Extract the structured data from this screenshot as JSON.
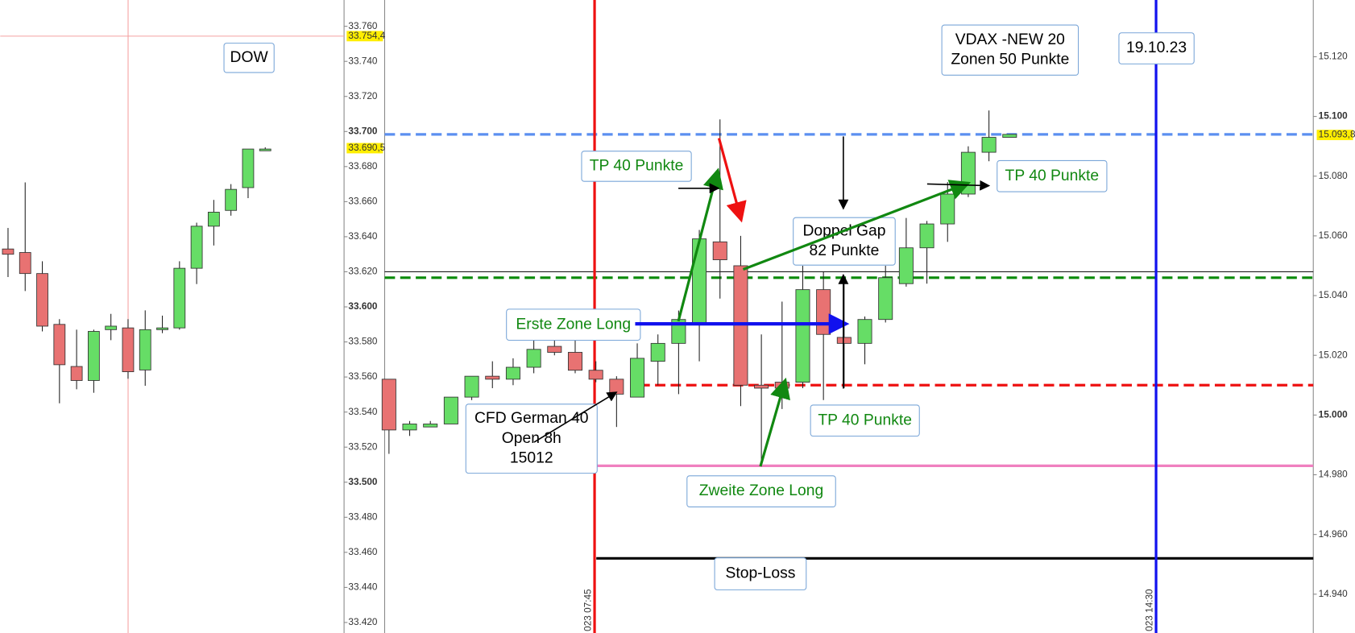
{
  "chart_data": [
    {
      "type": "candlestick",
      "title": "DOW",
      "open": [
        33633,
        33631,
        33619,
        33590,
        33566,
        33558,
        33587,
        33588,
        33564,
        33587,
        33588,
        33622,
        33646,
        33655,
        33668,
        33689
      ],
      "high": [
        33645,
        33671,
        33626,
        33593,
        33587,
        33587,
        33596,
        33593,
        33598,
        33595,
        33626,
        33648,
        33661,
        33670,
        33690,
        33691
      ],
      "low": [
        33617,
        33609,
        33586,
        33545,
        33553,
        33551,
        33581,
        33559,
        33555,
        33585,
        33587,
        33613,
        33635,
        33652,
        33662,
        33689
      ],
      "close": [
        33630,
        33619,
        33589,
        33567,
        33558,
        33586,
        33589,
        33563,
        33587,
        33588,
        33622,
        33646,
        33654,
        33667,
        33690,
        33690
      ],
      "up_color": "#66dd66",
      "down_color": "#e87272",
      "ylim": [
        33414,
        33775
      ],
      "yticks": [
        {
          "value": 33420,
          "label": "33.420"
        },
        {
          "value": 33440,
          "label": "33.440"
        },
        {
          "value": 33460,
          "label": "33.460"
        },
        {
          "value": 33480,
          "label": "33.480"
        },
        {
          "value": 33500,
          "label": "33.500"
        },
        {
          "value": 33520,
          "label": "33.520"
        },
        {
          "value": 33540,
          "label": "33.540"
        },
        {
          "value": 33560,
          "label": "33.560"
        },
        {
          "value": 33580,
          "label": "33.580"
        },
        {
          "value": 33600,
          "label": "33.600"
        },
        {
          "value": 33620,
          "label": "33.620"
        },
        {
          "value": 33640,
          "label": "33.640"
        },
        {
          "value": 33660,
          "label": "33.660"
        },
        {
          "value": 33680,
          "label": "33.680"
        },
        {
          "value": 33700,
          "label": "33.700"
        },
        {
          "value": 33720,
          "label": "33.720"
        },
        {
          "value": 33740,
          "label": "33.740"
        },
        {
          "value": 33760,
          "label": "33.760"
        }
      ],
      "price_tags": [
        {
          "value": 33754.4,
          "label": "33.754,4"
        },
        {
          "value": 33690.5,
          "label": "33.690,5"
        }
      ]
    },
    {
      "type": "candlestick",
      "open": [
        15012,
        14995,
        14996,
        14997,
        15006,
        15013,
        15012,
        15016,
        15023,
        15021,
        15015,
        15012,
        15006,
        15018,
        15024,
        15031,
        15058,
        15050,
        15010,
        15011,
        15011,
        15042,
        15026,
        15024,
        15032,
        15044,
        15056,
        15064,
        15074,
        15088,
        15093
      ],
      "high": [
        15012,
        14998,
        14998,
        15006,
        15013,
        15018,
        15019,
        15025,
        15026,
        15025,
        15018,
        15013,
        15024,
        15027,
        15035,
        15062,
        15099,
        15060,
        15027,
        15038,
        15050,
        15048,
        15044,
        15033,
        15050,
        15066,
        15065,
        15078,
        15090,
        15102,
        15094
      ],
      "low": [
        14987,
        14993,
        14996,
        14997,
        15005,
        15009,
        15010,
        15014,
        15020,
        15014,
        15011,
        14996,
        15006,
        15010,
        15007,
        15018,
        15039,
        15003,
        14983,
        15002,
        15009,
        15005,
        15009,
        15017,
        15031,
        15043,
        15044,
        15058,
        15073,
        15085,
        15093
      ],
      "close": [
        14995,
        14997,
        14997,
        15006,
        15013,
        15012,
        15016,
        15022,
        15021,
        15015,
        15012,
        15007,
        15019,
        15024,
        15032,
        15059,
        15052,
        15010,
        15009,
        15009,
        15042,
        15027,
        15024,
        15032,
        15046,
        15056,
        15064,
        15074,
        15088,
        15093,
        15094
      ],
      "up_color": "#66dd66",
      "down_color": "#e87272",
      "ylim": [
        14927,
        15139
      ],
      "yticks": [
        {
          "value": 14940,
          "label": "14.940"
        },
        {
          "value": 14960,
          "label": "14.960"
        },
        {
          "value": 14980,
          "label": "14.980"
        },
        {
          "value": 15000,
          "label": "15.000"
        },
        {
          "value": 15020,
          "label": "15.020"
        },
        {
          "value": 15040,
          "label": "15.040"
        },
        {
          "value": 15060,
          "label": "15.060"
        },
        {
          "value": 15080,
          "label": "15.080"
        },
        {
          "value": 15100,
          "label": "15.100"
        },
        {
          "value": 15120,
          "label": "15.120"
        }
      ],
      "price_tags": [
        {
          "value": 15093.8,
          "label": "15.093,8"
        }
      ],
      "levels": [
        {
          "value": 15094,
          "color": "#5b8ff0",
          "style": "dashed"
        },
        {
          "value": 15048,
          "color": "#000000",
          "style": "thin"
        },
        {
          "value": 15046,
          "color": "#0a8a0a",
          "style": "dashed"
        },
        {
          "value": 15010,
          "color": "#ee1111",
          "style": "dashed"
        },
        {
          "value": 14983,
          "color": "#f080c0",
          "style": "solid"
        },
        {
          "value": 14952,
          "color": "#000000",
          "style": "thick"
        }
      ],
      "markers": [
        {
          "label": "023 07:45",
          "color": "#ee1111"
        },
        {
          "label": "023 14:30",
          "color": "#1111ee"
        }
      ],
      "annotations": [
        {
          "lines": [
            "VDAX -NEW 20",
            "Zonen 50 Punkte"
          ],
          "color": "#000000"
        },
        {
          "lines": [
            "19.10.23"
          ],
          "color": "#000000"
        },
        {
          "lines": [
            "TP 40 Punkte"
          ],
          "color": "#118811"
        },
        {
          "lines": [
            "TP 40 Punkte"
          ],
          "color": "#118811"
        },
        {
          "lines": [
            "Doppel Gap",
            "82 Punkte"
          ],
          "color": "#000000"
        },
        {
          "lines": [
            "Erste Zone Long"
          ],
          "color": "#118811"
        },
        {
          "lines": [
            "CFD German 40",
            "Open 8h",
            "15012"
          ],
          "color": "#000000"
        },
        {
          "lines": [
            "TP 40 Punkte"
          ],
          "color": "#118811"
        },
        {
          "lines": [
            "Zweite Zone Long"
          ],
          "color": "#118811"
        },
        {
          "lines": [
            "Stop-Loss"
          ],
          "color": "#000000"
        }
      ]
    }
  ]
}
